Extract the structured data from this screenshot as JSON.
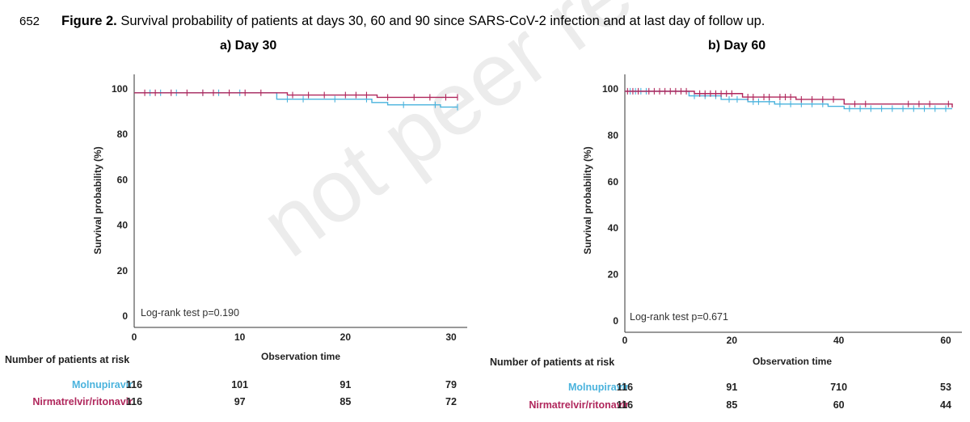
{
  "page": {
    "line_number": "652",
    "caption_bold": "Figure 2.",
    "caption_text": " Survival probability of patients at days 30, 60 and 90 since SARS-CoV-2 infection and at last day of follow up.",
    "watermark": "not peer reviewed",
    "colors": {
      "molnupiravir": "#4ab3dd",
      "nirmatrelvir": "#b0275c",
      "axis": "#333333",
      "watermark": "#ececec"
    }
  },
  "chart_data": [
    {
      "type": "line",
      "panel_title": "a)  Day 30",
      "xlabel": "Observation time",
      "ylabel": "Survival probability (%)",
      "xlim": [
        0,
        30
      ],
      "ylim": [
        0,
        100
      ],
      "xticks": [
        0,
        10,
        20,
        30
      ],
      "yticks": [
        0,
        20,
        40,
        60,
        80,
        100
      ],
      "grid": false,
      "annotation": "Log-rank test p=0.190",
      "series": [
        {
          "name": "Molnupiravir",
          "color": "#4ab3dd",
          "steps": [
            [
              0,
              98.3
            ],
            [
              13.5,
              95.5
            ],
            [
              22.5,
              94.0
            ],
            [
              24,
              93.0
            ],
            [
              29,
              92.0
            ],
            [
              32,
              92.0
            ]
          ],
          "censor": [
            1.5,
            2.5,
            4,
            6.5,
            8,
            10,
            14.5,
            16,
            19,
            22,
            25.5,
            28.5,
            31.5
          ]
        },
        {
          "name": "Nirmatrelvir/ritonavir",
          "color": "#b0275c",
          "steps": [
            [
              0,
              98.3
            ],
            [
              14.5,
              97.3
            ],
            [
              23,
              96.3
            ],
            [
              32,
              96.3
            ]
          ],
          "censor": [
            1,
            2,
            3.5,
            5,
            6.5,
            7.5,
            9,
            10.5,
            12,
            15,
            16.5,
            18,
            20,
            21,
            22,
            24,
            26.5,
            28,
            29.5,
            31.5
          ]
        }
      ],
      "risk_table": {
        "title": "Number of patients at risk",
        "x": [
          0,
          10,
          20,
          30
        ],
        "rows": [
          {
            "label": "Molnupiravir",
            "color": "#4ab3dd",
            "values": [
              "116",
              "101",
              "91",
              "79"
            ]
          },
          {
            "label": "Nirmatrelvir/ritonavir",
            "color": "#b0275c",
            "values": [
              "116",
              "97",
              "85",
              "72"
            ]
          }
        ]
      }
    },
    {
      "type": "line",
      "panel_title": "b)  Day 60",
      "xlabel": "Observation time",
      "ylabel": "Survival probability (%)",
      "xlim": [
        0,
        60
      ],
      "ylim": [
        0,
        100
      ],
      "xticks": [
        0,
        20,
        40,
        60
      ],
      "yticks": [
        0,
        20,
        40,
        60,
        80,
        100
      ],
      "grid": false,
      "annotation": "Log-rank test p=0.671",
      "series": [
        {
          "name": "Molnupiravir",
          "color": "#4ab3dd",
          "steps": [
            [
              0,
              99
            ],
            [
              12,
              97
            ],
            [
              18,
              95.5
            ],
            [
              23,
              94.5
            ],
            [
              28,
              93.5
            ],
            [
              38,
              92.5
            ],
            [
              41,
              91.5
            ],
            [
              62,
              91.5
            ]
          ],
          "censor": [
            1,
            2,
            3,
            4,
            13,
            15,
            17,
            19.5,
            21,
            24,
            25,
            27,
            29,
            31,
            33,
            35,
            37,
            42,
            44,
            46,
            48,
            50,
            52,
            54,
            56,
            58,
            60
          ]
        },
        {
          "name": "Nirmatrelvir/ritonavir",
          "color": "#b0275c",
          "steps": [
            [
              0,
              99
            ],
            [
              13,
              98
            ],
            [
              22,
              96.5
            ],
            [
              32,
              95.5
            ],
            [
              41,
              93.5
            ],
            [
              62,
              92
            ]
          ],
          "censor": [
            0.5,
            1.5,
            2.5,
            4.5,
            5.5,
            6.5,
            7.5,
            8.5,
            9.5,
            10.5,
            11.5,
            14,
            15,
            16,
            17,
            18,
            19,
            20,
            23,
            24,
            26,
            27,
            29,
            30,
            31,
            33,
            35,
            37,
            39,
            43,
            45,
            53,
            55,
            57,
            60.5
          ]
        }
      ],
      "risk_table": {
        "title": "Number of patients at risk",
        "x": [
          0,
          20,
          40,
          60
        ],
        "rows": [
          {
            "label": "Molnupiravir",
            "color": "#4ab3dd",
            "values": [
              "116",
              "91",
              "710",
              "53"
            ]
          },
          {
            "label": "Nirmatrelvir/ritonavir",
            "color": "#b0275c",
            "values": [
              "116",
              "85",
              "60",
              "44"
            ]
          }
        ]
      }
    }
  ]
}
